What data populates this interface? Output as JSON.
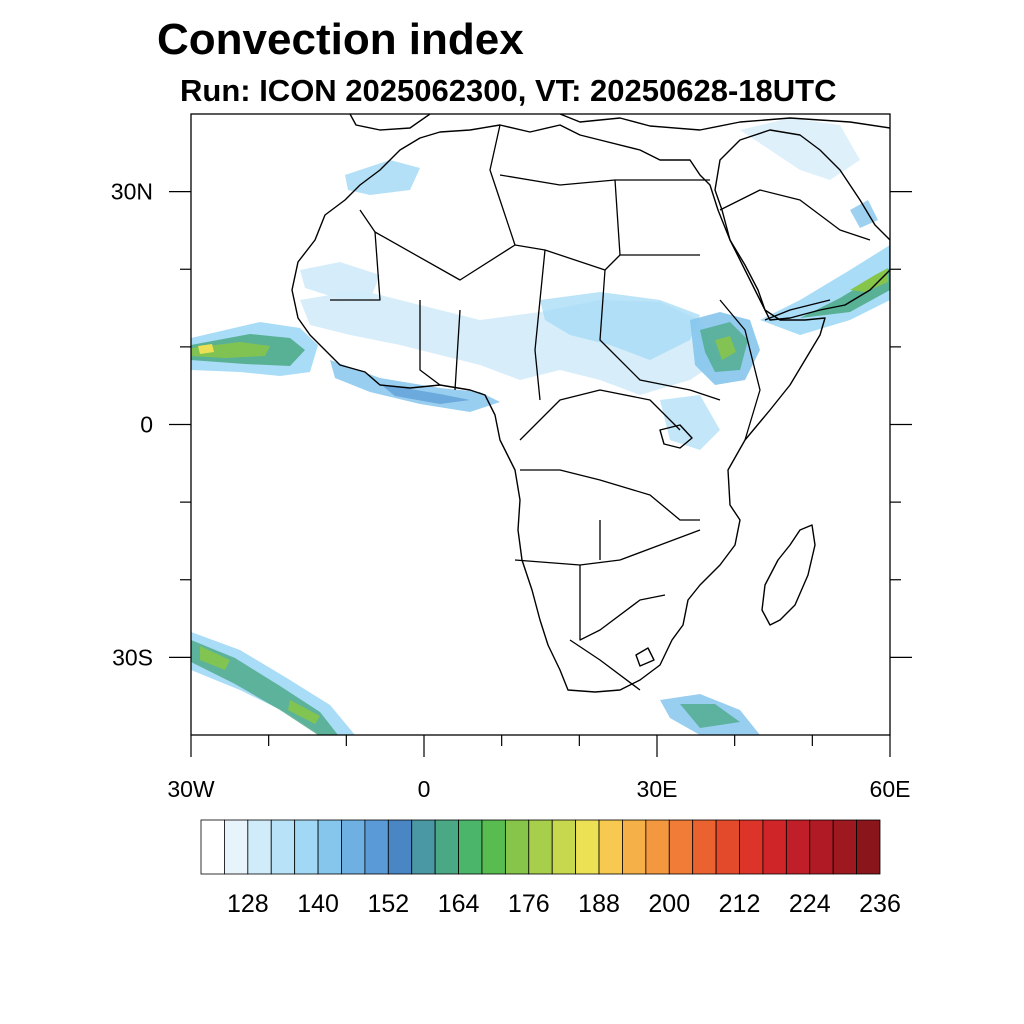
{
  "title": "Convection index",
  "subtitle": "Run: ICON 2025062300,  VT: 20250628-18UTC",
  "axes": {
    "lon_min": -30,
    "lon_max": 60,
    "lat_min": -40,
    "lat_max": 40,
    "lon_ticks": [
      {
        "value": -30,
        "label": "30W"
      },
      {
        "value": 0,
        "label": "0"
      },
      {
        "value": 30,
        "label": "30E"
      },
      {
        "value": 60,
        "label": "60E"
      }
    ],
    "lat_ticks": [
      {
        "value": 30,
        "label": "30N"
      },
      {
        "value": 0,
        "label": "0"
      },
      {
        "value": -30,
        "label": "30S"
      }
    ],
    "minor_lon": [
      -20,
      -10,
      10,
      20,
      40,
      50
    ],
    "minor_lat": [
      20,
      10,
      -10,
      -20
    ]
  },
  "colorbar": {
    "colors": [
      "#ffffff",
      "#e8f4fc",
      "#d0ebf9",
      "#b8e2f7",
      "#a0d8f5",
      "#86c5ec",
      "#6eb0e2",
      "#5a9ad6",
      "#4a86c4",
      "#4a98a4",
      "#4aa884",
      "#4bb56a",
      "#58bc50",
      "#86c54a",
      "#a8cf4c",
      "#c8d84e",
      "#ece155",
      "#f8c950",
      "#f6b048",
      "#f49840",
      "#f07c38",
      "#ea6230",
      "#e34a2c",
      "#dc3428",
      "#d02528",
      "#c01e28",
      "#b01a24",
      "#9e1820",
      "#8a161c"
    ],
    "tick_labels": [
      "128",
      "140",
      "152",
      "164",
      "176",
      "188",
      "200",
      "212",
      "224",
      "236"
    ]
  },
  "map_icons": {
    "land": "coastline-outline",
    "fields": "convection-field"
  }
}
